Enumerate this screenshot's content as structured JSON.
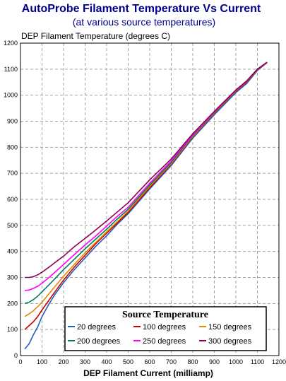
{
  "chart_data": {
    "type": "line",
    "title": "AutoProbe Filament Temperature Vs Current",
    "subtitle": "(at various source temperatures)",
    "ylabel": "DEP Filament Temperature (degrees C)",
    "xlabel": "DEP Filament Current (milliamp)",
    "xlim": [
      0,
      1200
    ],
    "ylim": [
      0,
      1200
    ],
    "xticks": [
      0,
      100,
      200,
      300,
      400,
      500,
      600,
      700,
      800,
      900,
      1000,
      1100,
      1200
    ],
    "yticks": [
      0,
      100,
      200,
      300,
      400,
      500,
      600,
      700,
      800,
      900,
      1000,
      1100,
      1200
    ],
    "grid": true,
    "legend_position": "bottom-right",
    "legend_title": "Source Temperature",
    "colors": {
      "title": "#00008B",
      "subtitle": "#00008B"
    },
    "series": [
      {
        "name": "20 degrees",
        "color": "#1f5fbf",
        "x": [
          20,
          40,
          60,
          80,
          100,
          130,
          160,
          200,
          250,
          300,
          350,
          400,
          450,
          500,
          600,
          700,
          800,
          900,
          1000,
          1050,
          1100,
          1145
        ],
        "y": [
          25,
          45,
          80,
          110,
          150,
          195,
          235,
          280,
          330,
          375,
          420,
          460,
          505,
          545,
          640,
          730,
          835,
          925,
          1010,
          1045,
          1095,
          1125
        ]
      },
      {
        "name": "100 degrees",
        "color": "#cc0000",
        "x": [
          20,
          40,
          60,
          80,
          100,
          130,
          160,
          200,
          250,
          300,
          350,
          400,
          450,
          500,
          600,
          700,
          800,
          900,
          1000,
          1050,
          1100,
          1145
        ],
        "y": [
          100,
          115,
          130,
          150,
          175,
          210,
          245,
          290,
          340,
          385,
          430,
          470,
          510,
          550,
          645,
          735,
          840,
          930,
          1015,
          1050,
          1097,
          1125
        ]
      },
      {
        "name": "150 degrees",
        "color": "#e08a00",
        "x": [
          20,
          40,
          60,
          80,
          100,
          130,
          160,
          200,
          250,
          300,
          350,
          400,
          450,
          500,
          600,
          700,
          800,
          900,
          1000,
          1050,
          1100,
          1145
        ],
        "y": [
          150,
          160,
          172,
          188,
          205,
          235,
          265,
          305,
          350,
          395,
          435,
          475,
          515,
          555,
          650,
          738,
          842,
          932,
          1017,
          1052,
          1098,
          1125
        ]
      },
      {
        "name": "200 degrees",
        "color": "#007a5e",
        "x": [
          20,
          40,
          60,
          80,
          100,
          130,
          160,
          200,
          250,
          300,
          350,
          400,
          450,
          500,
          600,
          700,
          800,
          900,
          1000,
          1050,
          1100,
          1145
        ],
        "y": [
          200,
          205,
          215,
          228,
          245,
          270,
          295,
          330,
          370,
          410,
          448,
          485,
          525,
          562,
          655,
          742,
          845,
          934,
          1018,
          1053,
          1099,
          1126
        ]
      },
      {
        "name": "250 degrees",
        "color": "#ff00ff",
        "x": [
          20,
          40,
          60,
          80,
          100,
          130,
          160,
          200,
          250,
          300,
          350,
          400,
          450,
          500,
          600,
          700,
          800,
          900,
          1000,
          1050,
          1100,
          1145
        ],
        "y": [
          250,
          252,
          258,
          266,
          278,
          298,
          320,
          350,
          388,
          425,
          460,
          497,
          535,
          570,
          662,
          748,
          848,
          936,
          1019,
          1054,
          1100,
          1126
        ]
      },
      {
        "name": "300 degrees",
        "color": "#8b0057",
        "x": [
          20,
          40,
          60,
          80,
          100,
          130,
          160,
          200,
          250,
          300,
          350,
          400,
          450,
          500,
          600,
          700,
          800,
          900,
          1000,
          1050,
          1100,
          1145
        ],
        "y": [
          300,
          300,
          303,
          310,
          320,
          338,
          357,
          382,
          418,
          450,
          483,
          517,
          552,
          587,
          675,
          755,
          852,
          938,
          1020,
          1055,
          1100,
          1127
        ]
      }
    ]
  }
}
